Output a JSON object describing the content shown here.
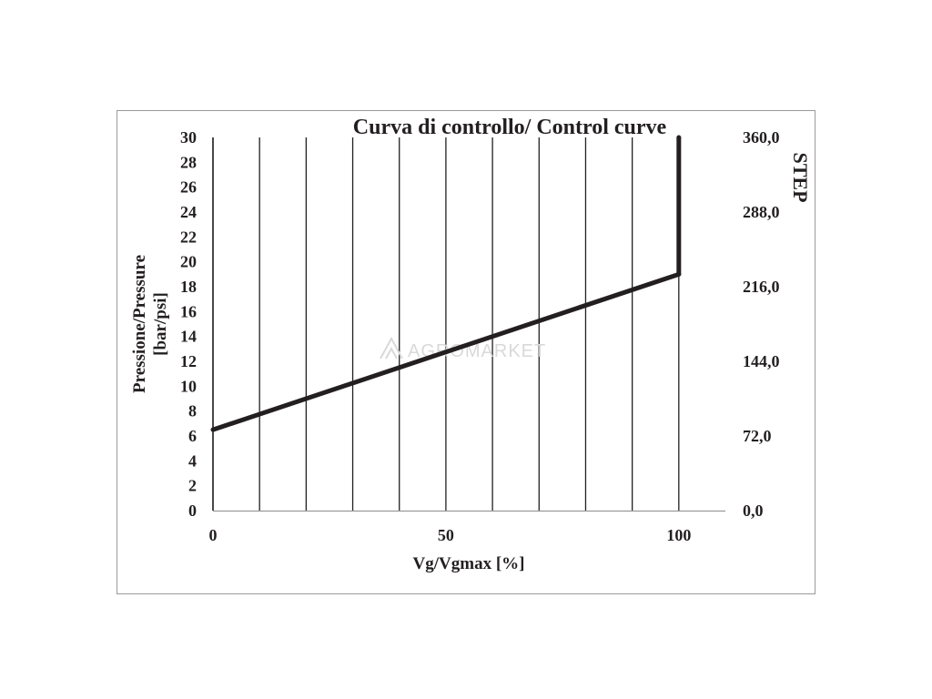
{
  "chart_data": {
    "type": "line",
    "title": "Curva di controllo/ Control curve",
    "xlabel": "Vg/Vgmax [%]",
    "ylabel_line1": "Pressione/Pressure",
    "ylabel_line2": "[bar/psi]",
    "y2label": "STEP",
    "xlim": [
      0,
      110
    ],
    "ylim": [
      0,
      30
    ],
    "y2lim": [
      0,
      360
    ],
    "x_ticks": [
      "0",
      "50",
      "100"
    ],
    "y_ticks": [
      "0",
      "2",
      "4",
      "6",
      "8",
      "10",
      "12",
      "14",
      "16",
      "18",
      "20",
      "22",
      "24",
      "26",
      "28",
      "30"
    ],
    "y2_ticks": [
      "0,0",
      "72,0",
      "144,0",
      "216,0",
      "288,0",
      "360,0"
    ],
    "grid": "vertical",
    "series": [
      {
        "x": [
          0,
          100,
          100
        ],
        "y": [
          6.5,
          19,
          30
        ]
      }
    ]
  },
  "watermark": "AGROMARKET"
}
